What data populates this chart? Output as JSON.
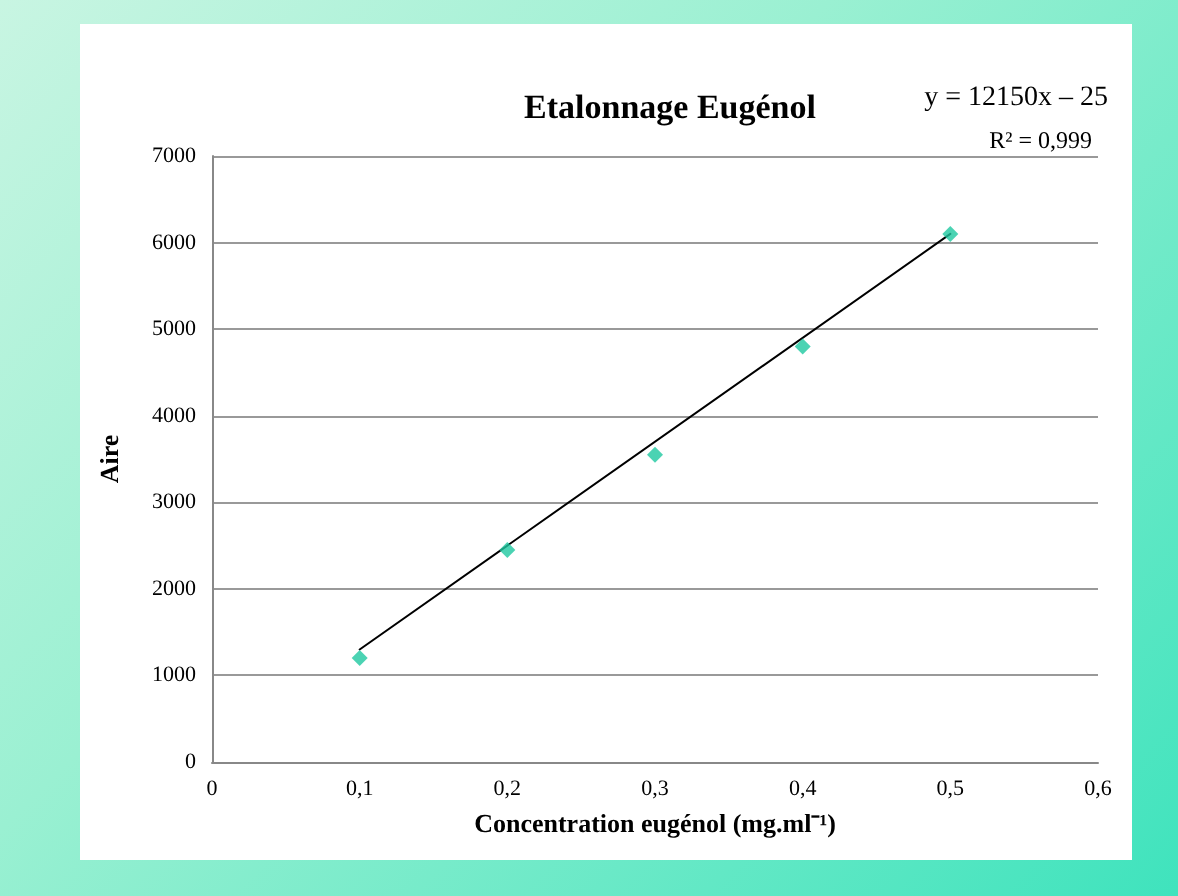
{
  "chart_data": {
    "type": "scatter",
    "title": "Etalonnage Eugénol",
    "xlabel": "Concentration eugénol (mg.ml⁻¹)",
    "ylabel": "Aire",
    "annotations": [
      "y = 12150x – 25",
      "R² = 0,999"
    ],
    "x": [
      0.1,
      0.2,
      0.3,
      0.4,
      0.5
    ],
    "series": [
      {
        "color": "#1ec8a0",
        "values": [
          1200,
          2450,
          3550,
          4800,
          6100
        ],
        "marker": "diamond"
      },
      {
        "type": "line",
        "color": "#000000",
        "x": [
          0.1,
          0.5
        ],
        "values": [
          1300,
          6100
        ],
        "marker": "none",
        "line_style": "solid"
      }
    ],
    "xlim": [
      0,
      0.6
    ],
    "xticks": [
      0,
      {
        "value": 0.1,
        "label": "0,1"
      },
      {
        "value": 0.2,
        "label": "0,2"
      },
      {
        "value": 0.3,
        "label": "0,3"
      },
      {
        "value": 0.4,
        "label": "0,4"
      },
      {
        "value": 0.5,
        "label": "0,5"
      },
      {
        "value": 0.6,
        "label": "0,6"
      }
    ],
    "ylim": [
      0,
      7000
    ],
    "yticks": [
      0,
      1000,
      2000,
      3000,
      4000,
      5000,
      6000,
      7000
    ],
    "grid": "y"
  }
}
